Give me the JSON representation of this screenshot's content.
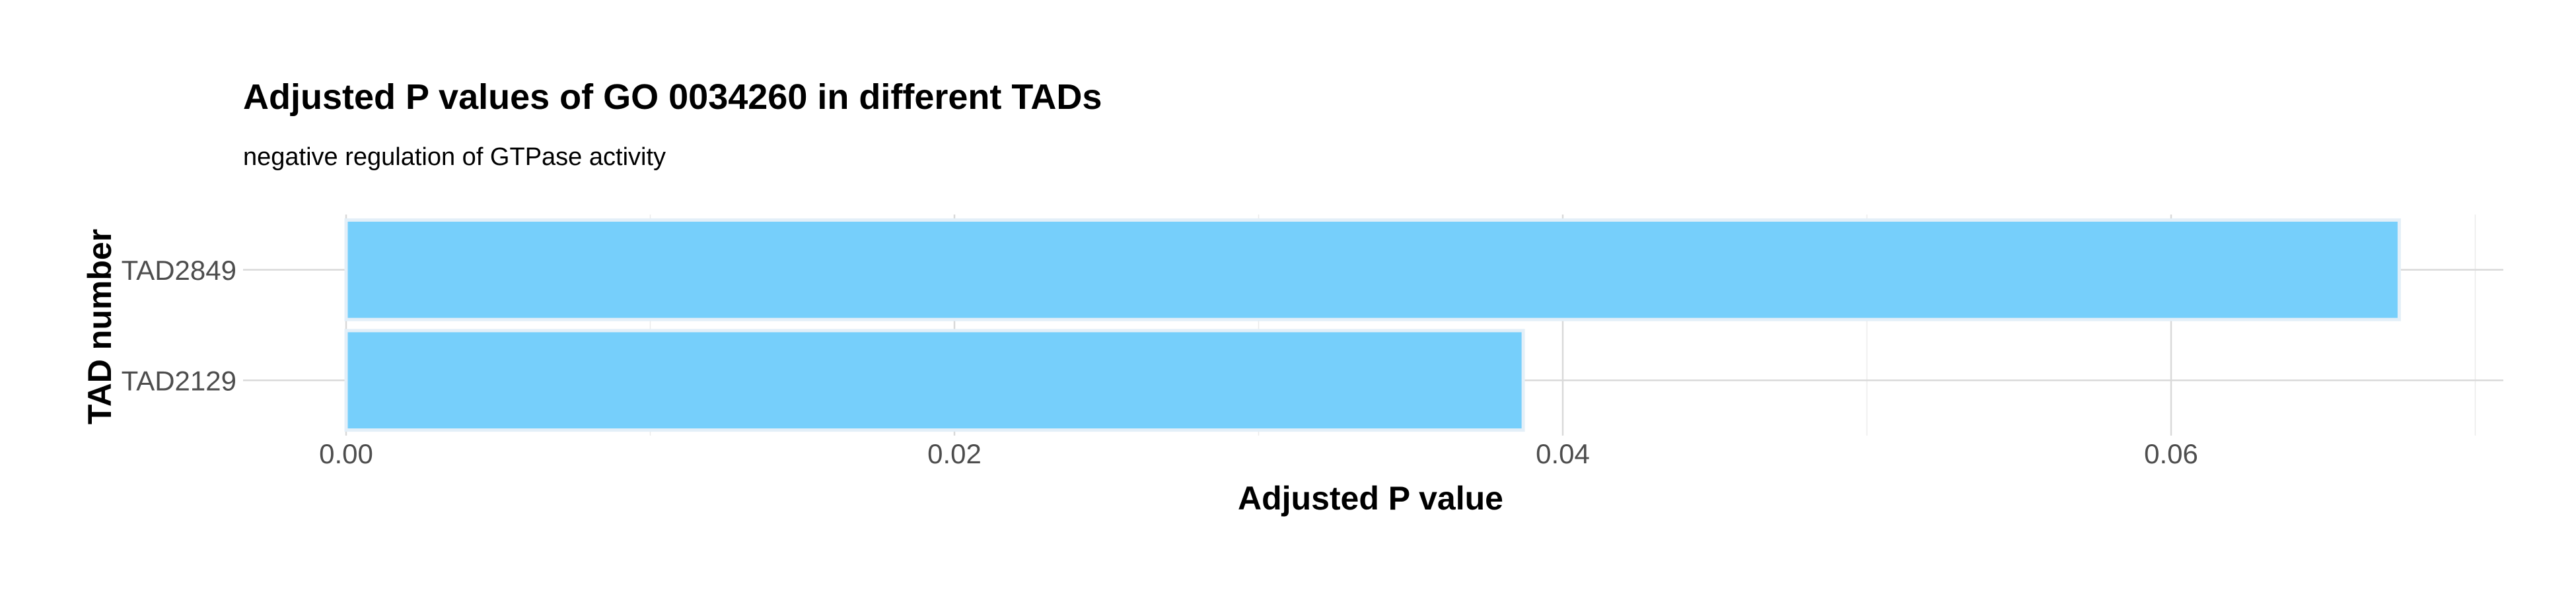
{
  "chart_data": {
    "type": "bar",
    "orientation": "horizontal",
    "title": "Adjusted P values of GO 0034260 in different TADs",
    "subtitle": "negative regulation of GTPase activity",
    "xlabel": "Adjusted P value",
    "ylabel": "TAD number",
    "categories": [
      "TAD2129",
      "TAD2849"
    ],
    "values": [
      0.0387,
      0.0675
    ],
    "xlim": [
      0,
      0.07
    ],
    "xticks": [
      0.0,
      0.02,
      0.04,
      0.06
    ],
    "xtick_labels": [
      "0.00",
      "0.02",
      "0.04",
      "0.06"
    ],
    "bar_color": "#76CFFB",
    "bar_outline": "#E3EFF8",
    "grid": true,
    "legend": "none"
  }
}
